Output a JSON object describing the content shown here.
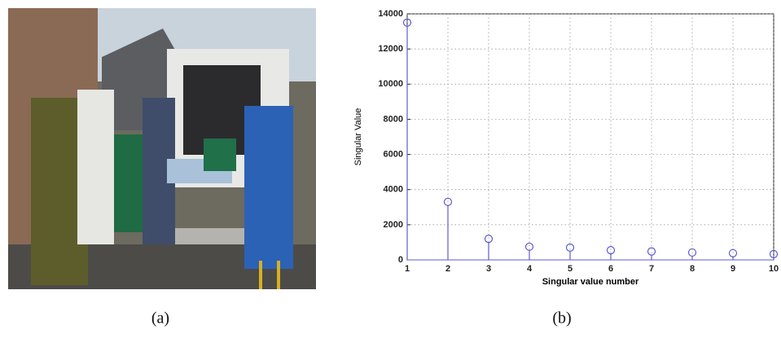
{
  "chart_data": {
    "type": "stem",
    "xlabel": "Singular value number",
    "ylabel": "Singular Value",
    "x": [
      1,
      2,
      3,
      4,
      5,
      6,
      7,
      8,
      9,
      10
    ],
    "values": [
      13500,
      3300,
      1200,
      750,
      700,
      550,
      480,
      420,
      380,
      330
    ],
    "color": "#5b5bd0",
    "xlim": [
      1,
      10
    ],
    "xticks": [
      1,
      2,
      3,
      4,
      5,
      6,
      7,
      8,
      9,
      10
    ],
    "ylim": [
      0,
      14000
    ],
    "yticks": [
      0,
      2000,
      4000,
      6000,
      8000,
      10000,
      12000,
      14000
    ],
    "grid": true
  },
  "captions": [
    "(a)",
    "(b)"
  ]
}
